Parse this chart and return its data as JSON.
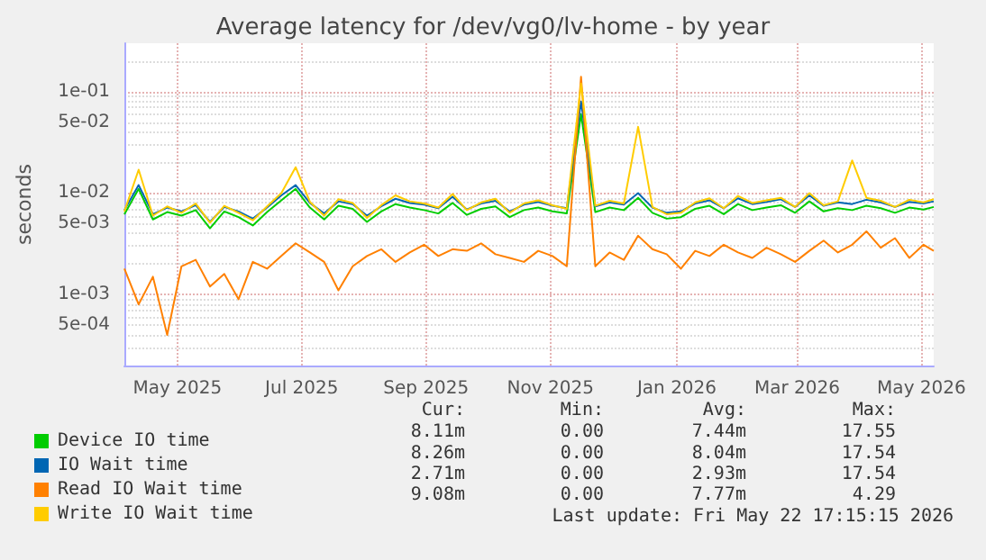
{
  "chart_data": {
    "type": "line",
    "title": "Average latency for /dev/vg0/lv-home - by year",
    "ylabel": "seconds",
    "log": "y",
    "grid": true,
    "legend": "bottom",
    "line_style": "solid",
    "marker": "none",
    "x": [
      "2025-04-20",
      "2025-04-27",
      "2025-05-04",
      "2025-05-11",
      "2025-05-18",
      "2025-05-25",
      "2025-06-01",
      "2025-06-08",
      "2025-06-15",
      "2025-06-22",
      "2025-06-29",
      "2025-07-06",
      "2025-07-13",
      "2025-07-20",
      "2025-07-27",
      "2025-08-03",
      "2025-08-10",
      "2025-08-17",
      "2025-08-24",
      "2025-08-31",
      "2025-09-07",
      "2025-09-14",
      "2025-09-21",
      "2025-09-28",
      "2025-10-05",
      "2025-10-12",
      "2025-10-19",
      "2025-10-26",
      "2025-11-02",
      "2025-11-09",
      "2025-11-16",
      "2025-11-23",
      "2025-11-30",
      "2025-12-07",
      "2025-12-14",
      "2025-12-21",
      "2025-12-28",
      "2026-01-04",
      "2026-01-11",
      "2026-01-18",
      "2026-01-25",
      "2026-02-01",
      "2026-02-08",
      "2026-02-15",
      "2026-02-22",
      "2026-03-01",
      "2026-03-08",
      "2026-03-15",
      "2026-03-22",
      "2026-03-29",
      "2026-04-05",
      "2026-04-12",
      "2026-04-19",
      "2026-04-26",
      "2026-05-03",
      "2026-05-10",
      "2026-05-17",
      "2026-05-22"
    ],
    "xlim": [
      "2025-04-20",
      "2026-05-22"
    ],
    "xticks": [
      {
        "value": "2025-05-16",
        "label": "May 2025"
      },
      {
        "value": "2025-07-16",
        "label": "Jul 2025"
      },
      {
        "value": "2025-09-15",
        "label": "Sep 2025"
      },
      {
        "value": "2025-11-15",
        "label": "Nov 2025"
      },
      {
        "value": "2026-01-16",
        "label": "Jan 2026"
      },
      {
        "value": "2026-03-16",
        "label": "Mar 2026"
      },
      {
        "value": "2026-05-16",
        "label": "May 2026"
      }
    ],
    "ylim": [
      0.0002,
      0.3
    ],
    "yticks": [
      {
        "value": 0.0005,
        "label": "5e-04"
      },
      {
        "value": 0.001,
        "label": "1e-03"
      },
      {
        "value": 0.005,
        "label": "5e-03"
      },
      {
        "value": 0.01,
        "label": "1e-02"
      },
      {
        "value": 0.05,
        "label": "5e-02"
      },
      {
        "value": 0.1,
        "label": "1e-01"
      }
    ],
    "series": [
      {
        "name": "Device IO time",
        "color": "#00cc00",
        "values": [
          0.0062,
          0.011,
          0.0055,
          0.0065,
          0.006,
          0.0068,
          0.0045,
          0.0066,
          0.0058,
          0.0048,
          0.0065,
          0.0085,
          0.011,
          0.0072,
          0.0055,
          0.0075,
          0.007,
          0.0052,
          0.0066,
          0.0078,
          0.0072,
          0.0068,
          0.0063,
          0.008,
          0.0061,
          0.007,
          0.0074,
          0.0058,
          0.0068,
          0.0072,
          0.0066,
          0.0063,
          0.06,
          0.0065,
          0.0072,
          0.0068,
          0.009,
          0.0064,
          0.0056,
          0.0058,
          0.007,
          0.0075,
          0.0062,
          0.0078,
          0.0068,
          0.0072,
          0.0076,
          0.0064,
          0.0083,
          0.0066,
          0.0071,
          0.0068,
          0.0075,
          0.0071,
          0.0064,
          0.0072,
          0.0069,
          0.0073
        ]
      },
      {
        "name": "IO Wait time",
        "color": "#0066b3",
        "values": [
          0.0068,
          0.012,
          0.0062,
          0.0072,
          0.0066,
          0.0076,
          0.0052,
          0.0073,
          0.0066,
          0.0056,
          0.0072,
          0.0095,
          0.012,
          0.008,
          0.0063,
          0.0083,
          0.0078,
          0.006,
          0.0074,
          0.0088,
          0.008,
          0.0077,
          0.0071,
          0.0092,
          0.0069,
          0.0079,
          0.0084,
          0.0066,
          0.0077,
          0.0082,
          0.0075,
          0.0071,
          0.08,
          0.0074,
          0.0081,
          0.0077,
          0.01,
          0.0072,
          0.0064,
          0.0066,
          0.0079,
          0.0085,
          0.0071,
          0.0089,
          0.0078,
          0.0082,
          0.0087,
          0.0073,
          0.0095,
          0.0075,
          0.0081,
          0.0078,
          0.0086,
          0.0081,
          0.0073,
          0.0082,
          0.0079,
          0.0083
        ]
      },
      {
        "name": "Read IO Wait time",
        "color": "#ff8000",
        "values": [
          0.0018,
          0.0008,
          0.0015,
          0.0004,
          0.0019,
          0.0022,
          0.0012,
          0.0016,
          0.0009,
          0.0021,
          0.0018,
          0.0024,
          0.0032,
          0.0026,
          0.0021,
          0.0011,
          0.0019,
          0.0024,
          0.0028,
          0.0021,
          0.0026,
          0.0031,
          0.0024,
          0.0028,
          0.0027,
          0.0032,
          0.0025,
          0.0023,
          0.0021,
          0.0027,
          0.0024,
          0.0019,
          0.14,
          0.0019,
          0.0026,
          0.0022,
          0.0038,
          0.0028,
          0.0025,
          0.0018,
          0.0027,
          0.0024,
          0.0031,
          0.0026,
          0.0023,
          0.0029,
          0.0025,
          0.0021,
          0.0027,
          0.0034,
          0.0026,
          0.0031,
          0.0042,
          0.0029,
          0.0036,
          0.0023,
          0.0031,
          0.0027
        ]
      },
      {
        "name": "Write IO Wait time",
        "color": "#ffcc00",
        "values": [
          0.0066,
          0.017,
          0.006,
          0.0074,
          0.0064,
          0.0079,
          0.0051,
          0.0075,
          0.0064,
          0.0054,
          0.0074,
          0.01,
          0.018,
          0.0082,
          0.006,
          0.0087,
          0.008,
          0.0057,
          0.0076,
          0.0095,
          0.0083,
          0.0079,
          0.0072,
          0.0098,
          0.0068,
          0.0081,
          0.0088,
          0.0064,
          0.0079,
          0.0085,
          0.0076,
          0.007,
          0.12,
          0.0075,
          0.0084,
          0.0079,
          0.045,
          0.0073,
          0.0062,
          0.0064,
          0.0081,
          0.0089,
          0.0071,
          0.0094,
          0.008,
          0.0085,
          0.009,
          0.0073,
          0.01,
          0.0076,
          0.0083,
          0.021,
          0.009,
          0.0084,
          0.0073,
          0.0086,
          0.0081,
          0.0087
        ]
      }
    ],
    "annotations": [
      "Cur:",
      "Min:",
      "Avg:",
      "Max:",
      "8.11m",
      "0.00",
      "7.44m",
      "17.55",
      "8.26m",
      "0.00",
      "8.04m",
      "17.54",
      "2.71m",
      "0.00",
      "2.93m",
      "17.54",
      "9.08m",
      "0.00",
      "7.77m",
      "4.29",
      "Last update: Fri May 22 17:15:15 2026"
    ]
  }
}
